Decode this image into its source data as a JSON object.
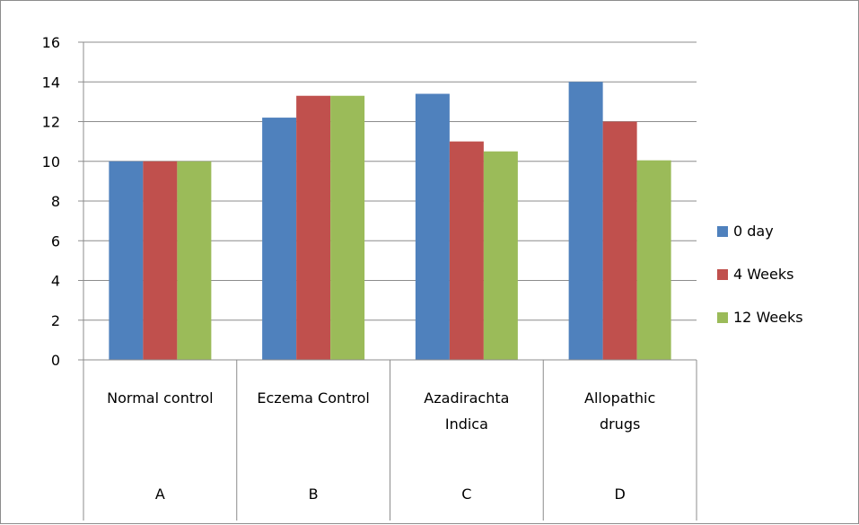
{
  "chart_data": {
    "type": "bar",
    "title": "",
    "xlabel": "",
    "ylabel": "",
    "ylim": [
      0,
      16
    ],
    "yticks": [
      0,
      2,
      4,
      6,
      8,
      10,
      12,
      14,
      16
    ],
    "grid": true,
    "legend_position": "right",
    "categories": [
      {
        "name_lines": [
          "Normal control"
        ],
        "group": "A"
      },
      {
        "name_lines": [
          "Eczema Control"
        ],
        "group": "B"
      },
      {
        "name_lines": [
          "Azadirachta",
          "Indica"
        ],
        "group": "C"
      },
      {
        "name_lines": [
          "Allopathic",
          "drugs"
        ],
        "group": "D"
      }
    ],
    "series": [
      {
        "name": "0 day",
        "color": "#4f81bd",
        "values": [
          10,
          12.2,
          13.4,
          14
        ]
      },
      {
        "name": "4 Weeks",
        "color": "#c0504d",
        "values": [
          10,
          13.3,
          11,
          12
        ]
      },
      {
        "name": "12 Weeks",
        "color": "#9bbb59",
        "values": [
          10,
          13.3,
          10.5,
          10.05
        ]
      }
    ]
  }
}
